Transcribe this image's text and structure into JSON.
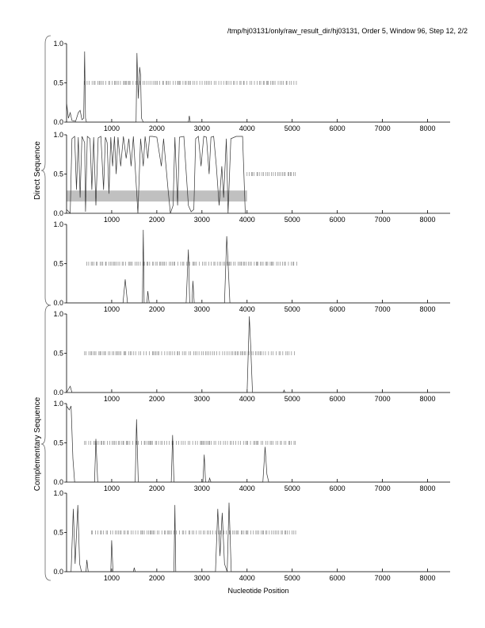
{
  "title": "/tmp/hj03131/only/raw_result_dir/hj03131, Order 5, Window 96, Step 12, 2/2",
  "group_labels": [
    "Direct Sequence",
    "Complementary Sequence"
  ],
  "xlabel": "Nucleotide Position",
  "colors": {
    "line": "#333333",
    "ticks": "#888888",
    "band": "#c0c0c0",
    "axis": "#000000"
  },
  "chart_data": [
    {
      "type": "line",
      "group": "Direct Sequence",
      "xlim": [
        0,
        8500
      ],
      "ylim": [
        0,
        1
      ],
      "xticks": [
        1000,
        2000,
        3000,
        4000,
        5000,
        6000,
        7000,
        8000
      ],
      "yticks": [
        "0.0",
        "0.5",
        "1.0"
      ],
      "series": [
        [
          0,
          0.25
        ],
        [
          40,
          0.05
        ],
        [
          80,
          0.12
        ],
        [
          120,
          0.02
        ],
        [
          200,
          0.01
        ],
        [
          260,
          0.12
        ],
        [
          300,
          0.15
        ],
        [
          340,
          0.03
        ],
        [
          380,
          0.05
        ],
        [
          400,
          0.9
        ],
        [
          420,
          0.05
        ],
        [
          440,
          0
        ],
        [
          1540,
          0
        ],
        [
          1560,
          0.88
        ],
        [
          1590,
          0.3
        ],
        [
          1620,
          0.7
        ],
        [
          1640,
          0.6
        ],
        [
          1660,
          0.05
        ],
        [
          1700,
          0
        ],
        [
          2700,
          0
        ],
        [
          2720,
          0.08
        ],
        [
          2740,
          0
        ],
        [
          8500,
          0
        ]
      ],
      "mark_ticks": [
        [
          400,
          5100
        ]
      ]
    },
    {
      "type": "line",
      "group": "Direct Sequence",
      "xlim": [
        0,
        8500
      ],
      "ylim": [
        0,
        1
      ],
      "xticks": [
        1000,
        2000,
        3000,
        4000,
        5000,
        6000,
        7000,
        8000
      ],
      "yticks": [
        "0.0",
        "0.5",
        "1.0"
      ],
      "band": [
        0.15,
        0.29,
        0,
        4000
      ],
      "series": [
        [
          0,
          0.05
        ],
        [
          80,
          0.0
        ],
        [
          120,
          0.95
        ],
        [
          180,
          0.98
        ],
        [
          220,
          0.3
        ],
        [
          260,
          0.97
        ],
        [
          300,
          0.2
        ],
        [
          340,
          0.98
        ],
        [
          400,
          0.9
        ],
        [
          420,
          0.02
        ],
        [
          460,
          0.98
        ],
        [
          520,
          0.95
        ],
        [
          560,
          0.3
        ],
        [
          600,
          0.97
        ],
        [
          650,
          0.1
        ],
        [
          700,
          0.96
        ],
        [
          760,
          0.98
        ],
        [
          820,
          0.3
        ],
        [
          860,
          0.97
        ],
        [
          900,
          0.9
        ],
        [
          940,
          0.25
        ],
        [
          980,
          0.97
        ],
        [
          1020,
          0.6
        ],
        [
          1060,
          0.98
        ],
        [
          1100,
          0.5
        ],
        [
          1140,
          0.97
        ],
        [
          1200,
          0.6
        ],
        [
          1260,
          0.98
        ],
        [
          1320,
          0.7
        ],
        [
          1380,
          0.95
        ],
        [
          1430,
          0.6
        ],
        [
          1480,
          0.98
        ],
        [
          1540,
          0.4
        ],
        [
          1580,
          0.0
        ],
        [
          1640,
          0.95
        ],
        [
          1700,
          0.6
        ],
        [
          1740,
          0.98
        ],
        [
          1800,
          0.7
        ],
        [
          1840,
          0.98
        ],
        [
          1900,
          0.98
        ],
        [
          2000,
          0.97
        ],
        [
          2100,
          0.6
        ],
        [
          2150,
          0.95
        ],
        [
          2250,
          0.3
        ],
        [
          2300,
          0.0
        ],
        [
          2360,
          0.1
        ],
        [
          2400,
          0.97
        ],
        [
          2460,
          0.1
        ],
        [
          2500,
          0.97
        ],
        [
          2600,
          0.98
        ],
        [
          2700,
          0.1
        ],
        [
          2760,
          0.02
        ],
        [
          2820,
          0.05
        ],
        [
          2860,
          0.95
        ],
        [
          2920,
          0.98
        ],
        [
          2980,
          0.6
        ],
        [
          3040,
          0.98
        ],
        [
          3100,
          0.97
        ],
        [
          3160,
          0.5
        ],
        [
          3200,
          0.97
        ],
        [
          3260,
          0.98
        ],
        [
          3320,
          0.6
        ],
        [
          3380,
          0.1
        ],
        [
          3440,
          0.6
        ],
        [
          3480,
          0.2
        ],
        [
          3540,
          0.95
        ],
        [
          3580,
          0.0
        ],
        [
          3640,
          0.95
        ],
        [
          3760,
          0.98
        ],
        [
          3900,
          0.98
        ],
        [
          3960,
          0.0
        ],
        [
          4000,
          0.0
        ]
      ],
      "mark_ticks": [
        [
          4000,
          5100
        ]
      ]
    },
    {
      "type": "line",
      "group": "Direct Sequence",
      "xlim": [
        0,
        8500
      ],
      "ylim": [
        0,
        1
      ],
      "xticks": [
        1000,
        2000,
        3000,
        4000,
        5000,
        6000,
        7000,
        8000
      ],
      "yticks": [
        "0.0",
        "0.5",
        "1.0"
      ],
      "series": [
        [
          0,
          0
        ],
        [
          1250,
          0
        ],
        [
          1300,
          0.3
        ],
        [
          1350,
          0
        ],
        [
          1680,
          0
        ],
        [
          1700,
          0.93
        ],
        [
          1720,
          0
        ],
        [
          1780,
          0
        ],
        [
          1800,
          0.15
        ],
        [
          1830,
          0
        ],
        [
          2650,
          0
        ],
        [
          2700,
          0.68
        ],
        [
          2730,
          0
        ],
        [
          2780,
          0
        ],
        [
          2800,
          0.28
        ],
        [
          2830,
          0
        ],
        [
          3500,
          0
        ],
        [
          3550,
          0.85
        ],
        [
          3580,
          0.5
        ],
        [
          3620,
          0
        ],
        [
          8500,
          0
        ]
      ],
      "mark_ticks": [
        [
          450,
          5100
        ]
      ]
    },
    {
      "type": "line",
      "group": "Complementary Sequence",
      "xlim": [
        0,
        8500
      ],
      "ylim": [
        0,
        1
      ],
      "xticks": [
        1000,
        2000,
        3000,
        4000,
        5000,
        6000,
        7000,
        8000
      ],
      "yticks": [
        "0.0",
        "0.5",
        "1.0"
      ],
      "series": [
        [
          0,
          0
        ],
        [
          80,
          0.08
        ],
        [
          120,
          0
        ],
        [
          4000,
          0
        ],
        [
          4050,
          0.97
        ],
        [
          4080,
          0.6
        ],
        [
          4120,
          0
        ],
        [
          4800,
          0
        ],
        [
          4820,
          0.03
        ],
        [
          4840,
          0
        ],
        [
          8500,
          0
        ]
      ],
      "mark_ticks": [
        [
          400,
          5100
        ]
      ]
    },
    {
      "type": "line",
      "group": "Complementary Sequence",
      "xlim": [
        0,
        8500
      ],
      "ylim": [
        0,
        1
      ],
      "xticks": [
        1000,
        2000,
        3000,
        4000,
        5000,
        6000,
        7000,
        8000
      ],
      "yticks": [
        "0.0",
        "0.5",
        "1.0"
      ],
      "series": [
        [
          0,
          0.97
        ],
        [
          60,
          0.92
        ],
        [
          100,
          0.97
        ],
        [
          140,
          0.3
        ],
        [
          180,
          0
        ],
        [
          620,
          0
        ],
        [
          650,
          0.55
        ],
        [
          690,
          0
        ],
        [
          1520,
          0
        ],
        [
          1550,
          0.8
        ],
        [
          1590,
          0
        ],
        [
          2320,
          0
        ],
        [
          2350,
          0.6
        ],
        [
          2380,
          0
        ],
        [
          3020,
          0
        ],
        [
          3050,
          0.35
        ],
        [
          3080,
          0
        ],
        [
          3150,
          0
        ],
        [
          3170,
          0.05
        ],
        [
          3200,
          0
        ],
        [
          4350,
          0
        ],
        [
          4400,
          0.45
        ],
        [
          4440,
          0.1
        ],
        [
          4480,
          0
        ],
        [
          8500,
          0
        ]
      ],
      "mark_ticks": [
        [
          400,
          5100
        ]
      ]
    },
    {
      "type": "line",
      "group": "Complementary Sequence",
      "xlim": [
        0,
        8500
      ],
      "ylim": [
        0,
        1
      ],
      "xticks": [
        1000,
        2000,
        3000,
        4000,
        5000,
        6000,
        7000,
        8000
      ],
      "yticks": [
        "0.0",
        "0.5",
        "1.0"
      ],
      "series": [
        [
          0,
          0
        ],
        [
          100,
          0
        ],
        [
          150,
          0.8
        ],
        [
          190,
          0.1
        ],
        [
          250,
          0.85
        ],
        [
          290,
          0.1
        ],
        [
          330,
          0
        ],
        [
          430,
          0
        ],
        [
          450,
          0.15
        ],
        [
          480,
          0
        ],
        [
          980,
          0
        ],
        [
          1000,
          0.4
        ],
        [
          1030,
          0
        ],
        [
          1480,
          0
        ],
        [
          1500,
          0.05
        ],
        [
          1520,
          0
        ],
        [
          2380,
          0
        ],
        [
          2400,
          0.85
        ],
        [
          2420,
          0
        ],
        [
          3300,
          0
        ],
        [
          3350,
          0.8
        ],
        [
          3400,
          0.2
        ],
        [
          3450,
          0.75
        ],
        [
          3500,
          0.1
        ],
        [
          3560,
          0
        ],
        [
          3600,
          0.88
        ],
        [
          3650,
          0
        ],
        [
          8500,
          0
        ]
      ],
      "mark_ticks": [
        [
          550,
          5100
        ]
      ]
    }
  ]
}
